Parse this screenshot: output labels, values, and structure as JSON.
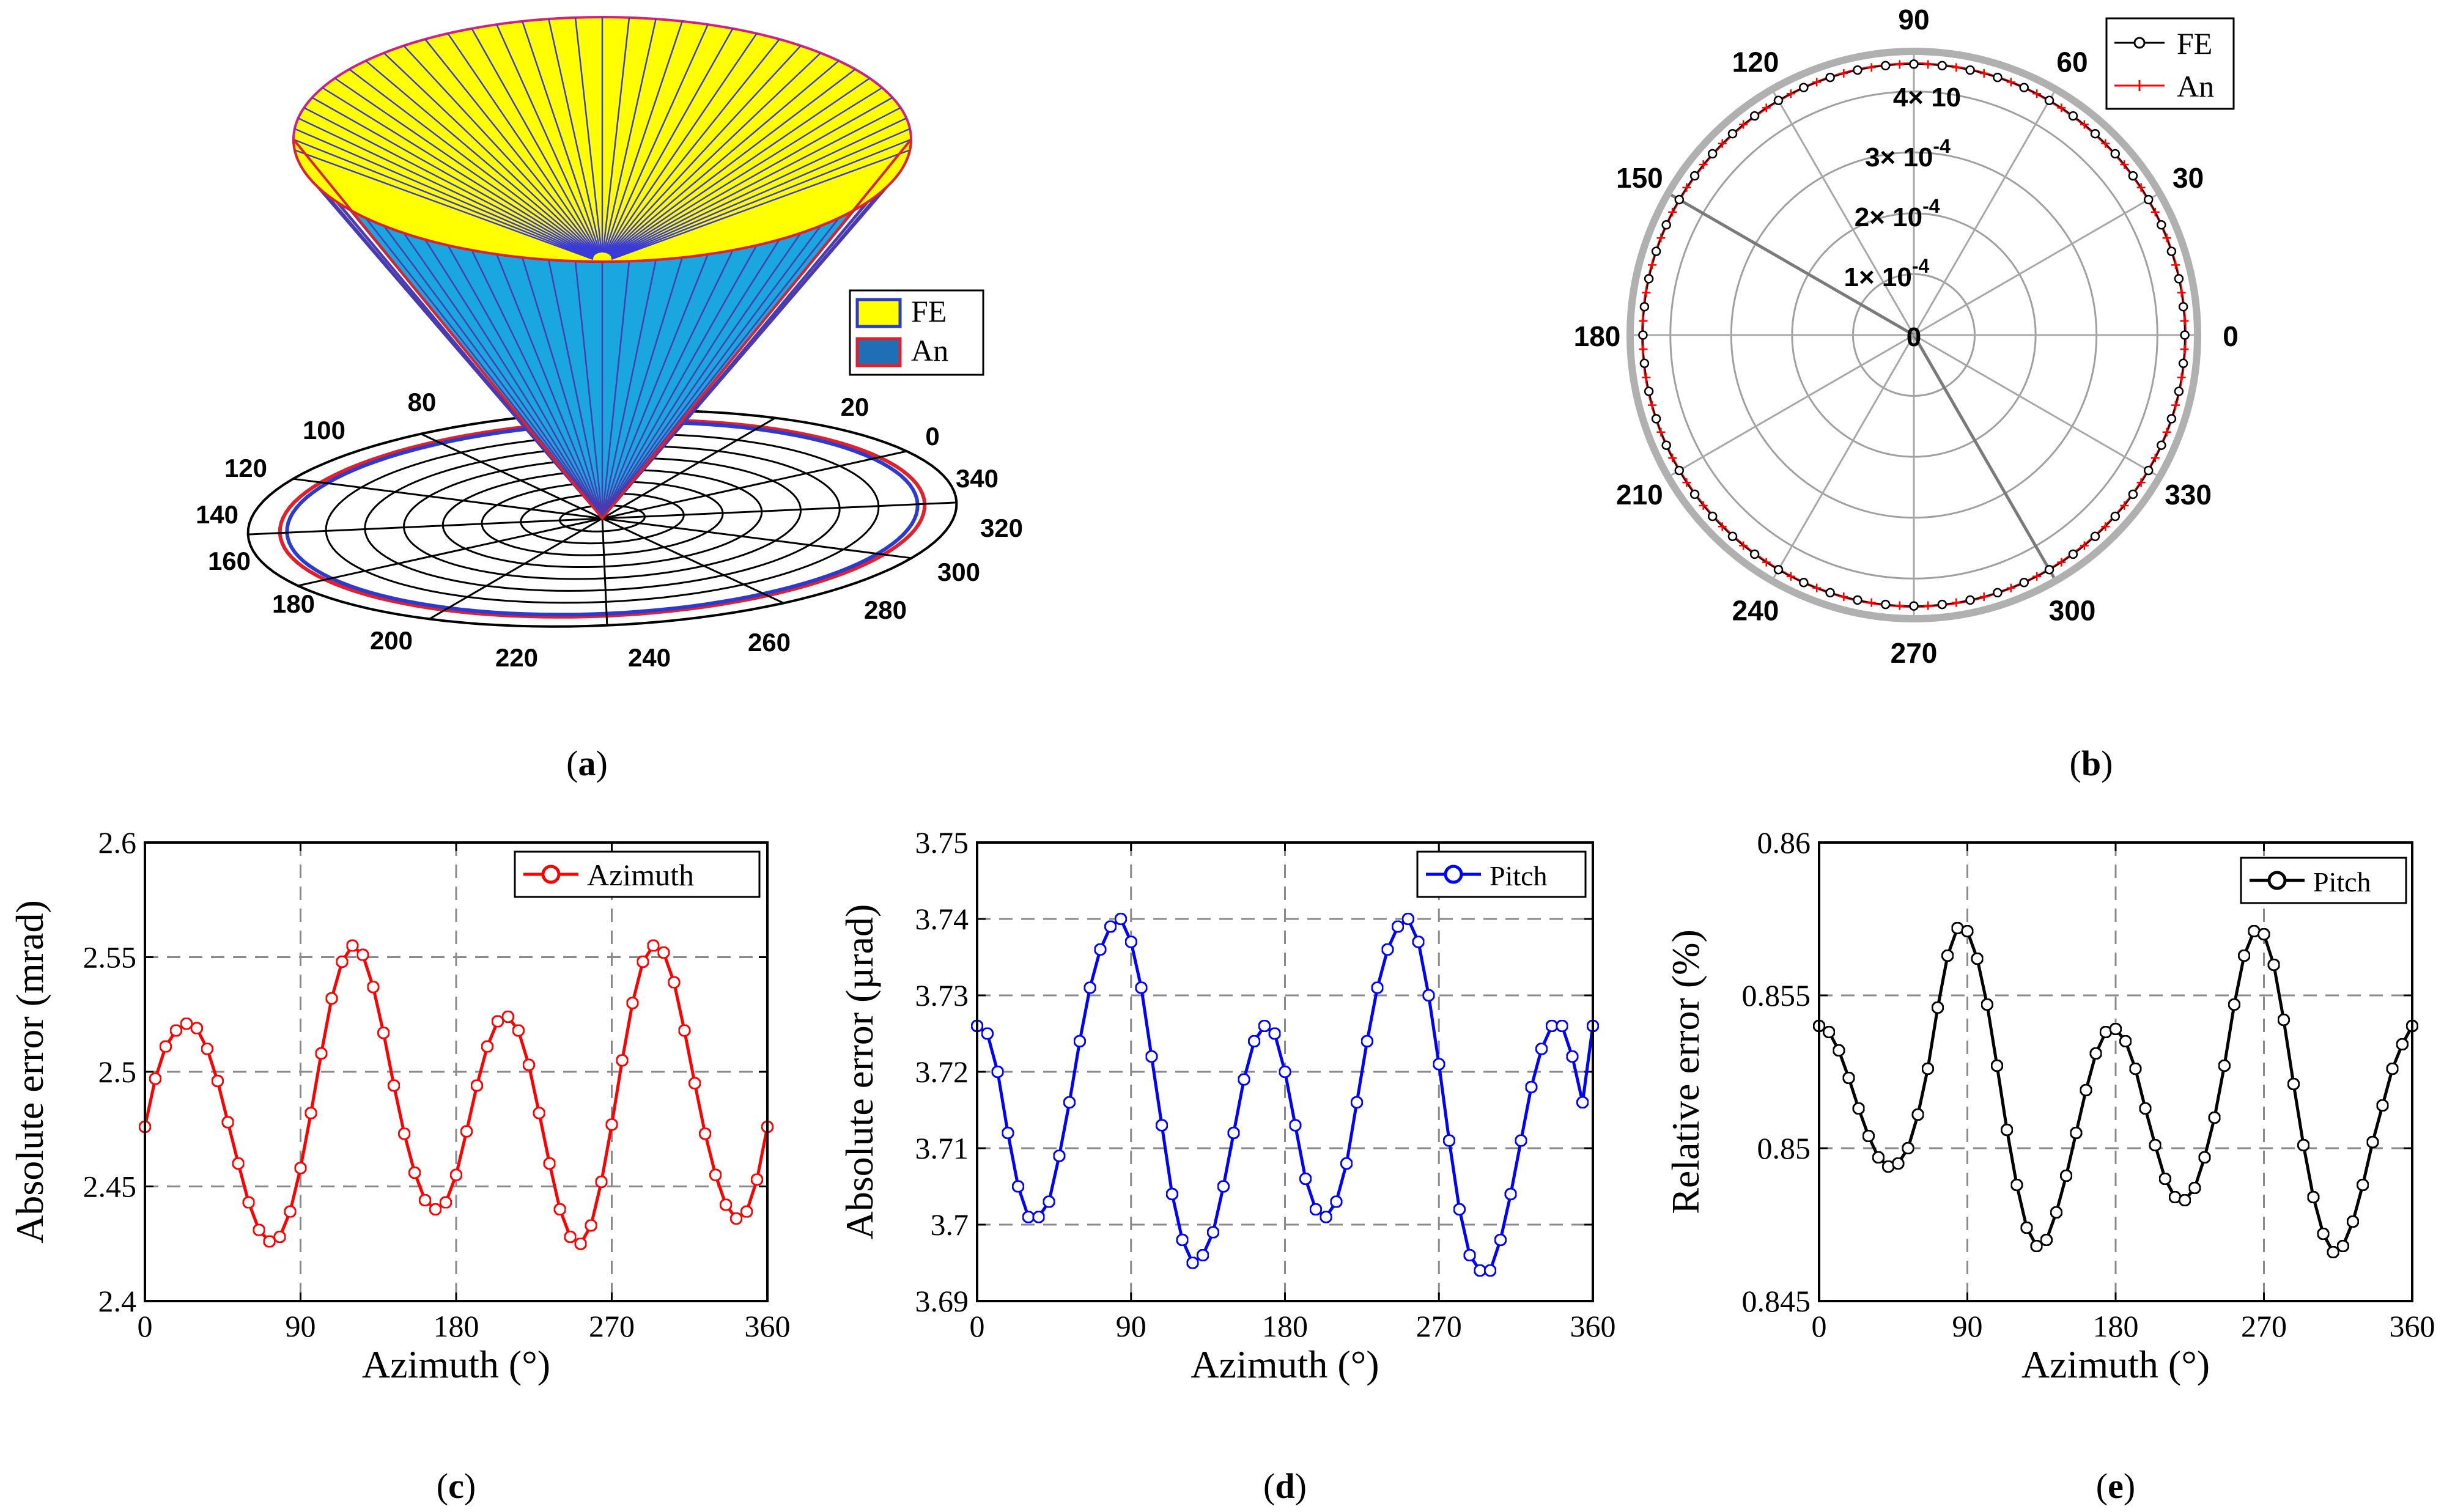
{
  "chart_data": [
    {
      "id": "a",
      "type": "polar-3d-cone",
      "panel_label_letter": "a",
      "series": [
        {
          "name": "FE",
          "color": "#ffff00",
          "edge": "#3a3ad8"
        },
        {
          "name": "An",
          "color": "#1aa6df",
          "edge": "#e0202a"
        }
      ],
      "angle_labels": [
        "0",
        "20",
        "80",
        "100",
        "120",
        "140",
        "160",
        "180",
        "200",
        "220",
        "240",
        "260",
        "280",
        "300",
        "320",
        "340"
      ]
    },
    {
      "id": "b",
      "type": "polar",
      "panel_label_letter": "b",
      "series": [
        {
          "name": "FE",
          "color": "#000000",
          "marker": "o"
        },
        {
          "name": "An",
          "color": "#ff0000",
          "marker": "+"
        }
      ],
      "angle_labels": [
        "0",
        "30",
        "60",
        "90",
        "120",
        "150",
        "180",
        "210",
        "240",
        "270",
        "300",
        "330"
      ],
      "radial_labels": [
        {
          "mantissa": "0",
          "exp": ""
        },
        {
          "mantissa": "1× 10",
          "exp": "-4"
        },
        {
          "mantissa": "2× 10",
          "exp": "-4"
        },
        {
          "mantissa": "3× 10",
          "exp": "-4"
        },
        {
          "mantissa": "4× 10",
          "exp": ""
        }
      ],
      "radial_value": 0.000445
    },
    {
      "id": "c",
      "type": "line",
      "panel_label_letter": "c",
      "color": "#ff0000",
      "legend": "Azimuth",
      "xlabel": "Azimuth (°)",
      "ylabel": "Absolute error (mrad)",
      "xlim": [
        0,
        360
      ],
      "ylim": [
        2.4,
        2.6
      ],
      "xticks": [
        "0",
        "90",
        "180",
        "270",
        "360"
      ],
      "yticks": [
        "2.4",
        "2.45",
        "2.5",
        "2.55",
        "2.6"
      ],
      "x": [
        0,
        6,
        12,
        18,
        24,
        30,
        36,
        42,
        48,
        54,
        60,
        66,
        72,
        78,
        84,
        90,
        96,
        102,
        108,
        114,
        120,
        126,
        132,
        138,
        144,
        150,
        156,
        162,
        168,
        174,
        180,
        186,
        192,
        198,
        204,
        210,
        216,
        222,
        228,
        234,
        240,
        246,
        252,
        258,
        264,
        270,
        276,
        282,
        288,
        294,
        300,
        306,
        312,
        318,
        324,
        330,
        336,
        342,
        348,
        354,
        360
      ],
      "y": [
        2.476,
        2.497,
        2.511,
        2.518,
        2.521,
        2.519,
        2.51,
        2.496,
        2.478,
        2.46,
        2.443,
        2.431,
        2.426,
        2.428,
        2.439,
        2.458,
        2.482,
        2.508,
        2.532,
        2.548,
        2.555,
        2.551,
        2.537,
        2.517,
        2.494,
        2.473,
        2.456,
        2.444,
        2.44,
        2.443,
        2.455,
        2.474,
        2.494,
        2.511,
        2.522,
        2.524,
        2.518,
        2.503,
        2.482,
        2.46,
        2.44,
        2.428,
        2.425,
        2.433,
        2.452,
        2.477,
        2.505,
        2.53,
        2.548,
        2.555,
        2.552,
        2.539,
        2.518,
        2.495,
        2.473,
        2.455,
        2.442,
        2.436,
        2.439,
        2.453,
        2.476
      ]
    },
    {
      "id": "d",
      "type": "line",
      "panel_label_letter": "d",
      "color": "#0000ff",
      "legend": "Pitch",
      "xlabel": "Azimuth (°)",
      "ylabel": "Absolute error (µrad)",
      "xlim": [
        0,
        360
      ],
      "ylim": [
        3.69,
        3.75
      ],
      "xticks": [
        "0",
        "90",
        "180",
        "270",
        "360"
      ],
      "yticks": [
        "3.69",
        "3.7",
        "3.71",
        "3.72",
        "3.73",
        "3.74",
        "3.75"
      ],
      "x": [
        0,
        6,
        12,
        18,
        24,
        30,
        36,
        42,
        48,
        54,
        60,
        66,
        72,
        78,
        84,
        90,
        96,
        102,
        108,
        114,
        120,
        126,
        132,
        138,
        144,
        150,
        156,
        162,
        168,
        174,
        180,
        186,
        192,
        198,
        204,
        210,
        216,
        222,
        228,
        234,
        240,
        246,
        252,
        258,
        264,
        270,
        276,
        282,
        288,
        294,
        300,
        306,
        312,
        318,
        324,
        330,
        336,
        342,
        348,
        354,
        360
      ],
      "y": [
        3.726,
        3.725,
        3.72,
        3.712,
        3.705,
        3.701,
        3.701,
        3.703,
        3.709,
        3.716,
        3.724,
        3.731,
        3.736,
        3.739,
        3.74,
        3.737,
        3.731,
        3.722,
        3.713,
        3.704,
        3.698,
        3.695,
        3.696,
        3.699,
        3.705,
        3.712,
        3.719,
        3.724,
        3.726,
        3.725,
        3.72,
        3.713,
        3.706,
        3.702,
        3.701,
        3.703,
        3.708,
        3.716,
        3.724,
        3.731,
        3.736,
        3.739,
        3.74,
        3.737,
        3.73,
        3.721,
        3.711,
        3.702,
        3.696,
        3.694,
        3.694,
        3.698,
        3.704,
        3.711,
        3.718,
        3.723,
        3.726,
        3.726,
        3.722,
        3.716,
        3.726
      ]
    },
    {
      "id": "e",
      "type": "line",
      "panel_label_letter": "e",
      "color": "#000000",
      "legend": "Pitch",
      "xlabel": "Azimuth (°)",
      "ylabel": "Relative error (%)",
      "xlim": [
        0,
        360
      ],
      "ylim": [
        0.845,
        0.86
      ],
      "xticks": [
        "0",
        "90",
        "180",
        "270",
        "360"
      ],
      "yticks": [
        "0.845",
        "0.85",
        "0.855",
        "0.86"
      ],
      "x": [
        0,
        6,
        12,
        18,
        24,
        30,
        36,
        42,
        48,
        54,
        60,
        66,
        72,
        78,
        84,
        90,
        96,
        102,
        108,
        114,
        120,
        126,
        132,
        138,
        144,
        150,
        156,
        162,
        168,
        174,
        180,
        186,
        192,
        198,
        204,
        210,
        216,
        222,
        228,
        234,
        240,
        246,
        252,
        258,
        264,
        270,
        276,
        282,
        288,
        294,
        300,
        306,
        312,
        318,
        324,
        330,
        336,
        342,
        348,
        354,
        360
      ],
      "y": [
        0.854,
        0.8538,
        0.8532,
        0.8523,
        0.8513,
        0.8504,
        0.8497,
        0.8494,
        0.8495,
        0.85,
        0.8511,
        0.8526,
        0.8546,
        0.8563,
        0.8572,
        0.8571,
        0.8562,
        0.8547,
        0.8527,
        0.8506,
        0.8488,
        0.8474,
        0.8468,
        0.847,
        0.8479,
        0.8491,
        0.8505,
        0.8519,
        0.8531,
        0.8538,
        0.8539,
        0.8535,
        0.8526,
        0.8513,
        0.8501,
        0.849,
        0.8484,
        0.8483,
        0.8487,
        0.8497,
        0.851,
        0.8527,
        0.8547,
        0.8563,
        0.8571,
        0.857,
        0.856,
        0.8542,
        0.8521,
        0.8501,
        0.8484,
        0.8472,
        0.8466,
        0.8468,
        0.8476,
        0.8488,
        0.8502,
        0.8514,
        0.8526,
        0.8534,
        0.854
      ]
    }
  ]
}
